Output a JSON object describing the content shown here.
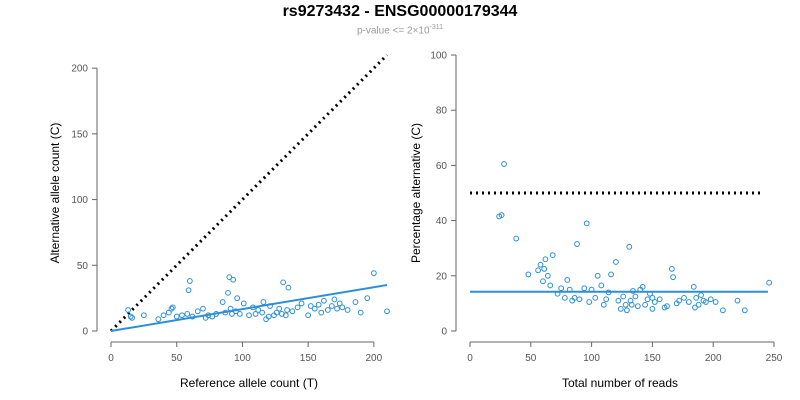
{
  "title": "rs9273432 - ENSG00000179344",
  "subtitle": {
    "prefix": "p-value <= 2",
    "times": "×",
    "base": "10",
    "exponent": "-311"
  },
  "colors": {
    "points": "#2b8fd8",
    "fit_line": "#2b8fd8",
    "reference_line": "#000000",
    "axis": "#666666"
  },
  "chart_data": [
    {
      "type": "scatter",
      "id": "left",
      "xlabel": "Reference allele count (T)",
      "ylabel": "Alternative allele count (C)",
      "xlim": [
        0,
        210
      ],
      "ylim": [
        0,
        210
      ],
      "xticks": [
        0,
        50,
        100,
        150,
        200
      ],
      "yticks": [
        0,
        50,
        100,
        150,
        200
      ],
      "reference_line": {
        "style": "dotted",
        "from": [
          0,
          0
        ],
        "to": [
          210,
          210
        ]
      },
      "fit_line": {
        "style": "solid",
        "from": [
          0,
          0
        ],
        "to": [
          210,
          35
        ]
      },
      "points": [
        [
          13,
          16
        ],
        [
          15,
          11
        ],
        [
          16,
          10
        ],
        [
          25,
          12
        ],
        [
          36,
          9
        ],
        [
          40,
          12
        ],
        [
          44,
          14
        ],
        [
          46,
          17
        ],
        [
          47,
          18
        ],
        [
          50,
          11
        ],
        [
          54,
          12
        ],
        [
          58,
          13
        ],
        [
          59,
          31
        ],
        [
          60,
          38
        ],
        [
          62,
          11
        ],
        [
          66,
          15
        ],
        [
          70,
          17
        ],
        [
          72,
          10
        ],
        [
          74,
          12
        ],
        [
          77,
          11
        ],
        [
          80,
          13
        ],
        [
          85,
          22
        ],
        [
          87,
          14
        ],
        [
          89,
          29
        ],
        [
          90,
          41
        ],
        [
          91,
          17
        ],
        [
          92,
          13
        ],
        [
          93,
          39
        ],
        [
          95,
          15
        ],
        [
          96,
          25
        ],
        [
          98,
          13
        ],
        [
          101,
          21
        ],
        [
          105,
          12
        ],
        [
          108,
          18
        ],
        [
          110,
          13
        ],
        [
          112,
          16
        ],
        [
          115,
          14
        ],
        [
          116,
          22
        ],
        [
          118,
          9
        ],
        [
          120,
          11
        ],
        [
          121,
          19
        ],
        [
          124,
          12
        ],
        [
          126,
          14
        ],
        [
          128,
          17
        ],
        [
          130,
          13
        ],
        [
          131,
          37
        ],
        [
          133,
          12
        ],
        [
          134,
          16
        ],
        [
          135,
          33
        ],
        [
          138,
          15
        ],
        [
          142,
          18
        ],
        [
          145,
          21
        ],
        [
          150,
          12
        ],
        [
          152,
          19
        ],
        [
          155,
          17
        ],
        [
          158,
          20
        ],
        [
          160,
          14
        ],
        [
          162,
          23
        ],
        [
          165,
          16
        ],
        [
          168,
          19
        ],
        [
          170,
          24
        ],
        [
          172,
          17
        ],
        [
          174,
          21
        ],
        [
          176,
          18
        ],
        [
          180,
          16
        ],
        [
          186,
          22
        ],
        [
          190,
          14
        ],
        [
          195,
          25
        ],
        [
          200,
          44
        ],
        [
          210,
          15
        ]
      ]
    },
    {
      "type": "scatter",
      "id": "right",
      "xlabel": "Total number of reads",
      "ylabel": "Percentage alternative (C)",
      "xlim": [
        0,
        250
      ],
      "ylim": [
        0,
        100
      ],
      "xticks": [
        0,
        50,
        100,
        150,
        200,
        250
      ],
      "yticks": [
        0,
        20,
        40,
        60,
        80,
        100
      ],
      "reference_line": {
        "style": "dotted",
        "from": [
          0,
          50
        ],
        "to": [
          240,
          50
        ]
      },
      "fit_line": {
        "style": "solid",
        "from": [
          0,
          14.2
        ],
        "to": [
          245,
          14.2
        ]
      },
      "points": [
        [
          24,
          41.5
        ],
        [
          26,
          42
        ],
        [
          28,
          60.5
        ],
        [
          38,
          33.5
        ],
        [
          48,
          20.5
        ],
        [
          56,
          22
        ],
        [
          58,
          24
        ],
        [
          60,
          18
        ],
        [
          61,
          22.5
        ],
        [
          62,
          26
        ],
        [
          64,
          20
        ],
        [
          66,
          16.5
        ],
        [
          68,
          27.5
        ],
        [
          72,
          13.5
        ],
        [
          75,
          15.5
        ],
        [
          78,
          12
        ],
        [
          80,
          18.5
        ],
        [
          82,
          15
        ],
        [
          84,
          11
        ],
        [
          86,
          12
        ],
        [
          88,
          31.5
        ],
        [
          90,
          11.5
        ],
        [
          94,
          15.5
        ],
        [
          96,
          39
        ],
        [
          98,
          10.5
        ],
        [
          100,
          15
        ],
        [
          103,
          12
        ],
        [
          105,
          20
        ],
        [
          108,
          16.5
        ],
        [
          110,
          9.5
        ],
        [
          114,
          14
        ],
        [
          116,
          20.5
        ],
        [
          120,
          25
        ],
        [
          122,
          11
        ],
        [
          124,
          8
        ],
        [
          126,
          12.5
        ],
        [
          128,
          9.5
        ],
        [
          129,
          7.5
        ],
        [
          131,
          30.5
        ],
        [
          132,
          11
        ],
        [
          133,
          9.5
        ],
        [
          134,
          14.5
        ],
        [
          136,
          12.5
        ],
        [
          138,
          9
        ],
        [
          140,
          15
        ],
        [
          142,
          16
        ],
        [
          144,
          9.5
        ],
        [
          146,
          11.5
        ],
        [
          148,
          13.5
        ],
        [
          150,
          12
        ],
        [
          152,
          10.5
        ],
        [
          156,
          11.5
        ],
        [
          160,
          8.5
        ],
        [
          162,
          9
        ],
        [
          166,
          22.5
        ],
        [
          167,
          19.5
        ],
        [
          170,
          10
        ],
        [
          172,
          11
        ],
        [
          176,
          12
        ],
        [
          180,
          10.5
        ],
        [
          184,
          16
        ],
        [
          186,
          12
        ],
        [
          188,
          9.5
        ],
        [
          190,
          13
        ],
        [
          192,
          11
        ],
        [
          194,
          10.5
        ],
        [
          198,
          11.5
        ],
        [
          202,
          10.5
        ],
        [
          208,
          7.5
        ],
        [
          220,
          11
        ],
        [
          226,
          7.5
        ],
        [
          246,
          17.5
        ],
        [
          185,
          8.5
        ],
        [
          150,
          8
        ],
        [
          112,
          11.5
        ]
      ]
    }
  ]
}
